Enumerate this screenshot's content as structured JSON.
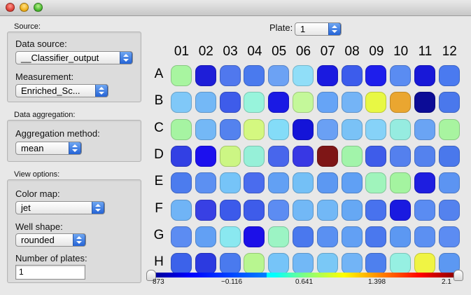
{
  "window": {
    "title": ""
  },
  "sidebar": {
    "source_heading": "Source:",
    "data_source_label": "Data source:",
    "data_source_value": "__Classifier_output",
    "measurement_label": "Measurement:",
    "measurement_value": "Enriched_Sc...",
    "aggregation_heading": "Data aggregation:",
    "aggregation_method_label": "Aggregation method:",
    "aggregation_method_value": "mean",
    "view_heading": "View options:",
    "color_map_label": "Color map:",
    "color_map_value": "jet",
    "well_shape_label": "Well shape:",
    "well_shape_value": "rounded",
    "num_plates_label": "Number of plates:",
    "num_plates_value": "1"
  },
  "plate": {
    "label": "Plate:",
    "value": "1"
  },
  "columns": [
    "01",
    "02",
    "03",
    "04",
    "05",
    "06",
    "07",
    "08",
    "09",
    "10",
    "11",
    "12"
  ],
  "rows": [
    "A",
    "B",
    "C",
    "D",
    "E",
    "F",
    "G",
    "H"
  ],
  "wells": [
    [
      "#a8f5a0",
      "#1e1ed8",
      "#5078ee",
      "#4a7aee",
      "#6ca2f4",
      "#90def8",
      "#1a1ae0",
      "#3c5cec",
      "#1e1eec",
      "#5a8cf2",
      "#1818d8",
      "#4a7af0"
    ],
    [
      "#80c8f8",
      "#74b8f6",
      "#3e5cea",
      "#98f4dc",
      "#1a1ae4",
      "#c4f89a",
      "#66a4f6",
      "#74b4f6",
      "#e8f844",
      "#eaa630",
      "#0c0c96",
      "#4a78ec"
    ],
    [
      "#a6f4a2",
      "#74b8f6",
      "#5482ee",
      "#d4f880",
      "#84dcf8",
      "#1414d8",
      "#6aa0f4",
      "#7ac2f6",
      "#86d2f8",
      "#96ece0",
      "#6aa4f4",
      "#a8f4a0"
    ],
    [
      "#3240e4",
      "#1c10ee",
      "#ccf684",
      "#96f0d8",
      "#4866ec",
      "#3838e4",
      "#7e1616",
      "#a2f4aa",
      "#3e5cea",
      "#5480ee",
      "#5482ee",
      "#4a78ec"
    ],
    [
      "#4c7cee",
      "#5c90f2",
      "#76c4f8",
      "#4a6cee",
      "#62a0f4",
      "#74c0f6",
      "#5c98f2",
      "#60a0f4",
      "#a0f4bc",
      "#a4f4a0",
      "#1e1ee0",
      "#5c94f2"
    ],
    [
      "#70b4f6",
      "#3840e4",
      "#3c5aea",
      "#3e5cea",
      "#5c8cf2",
      "#72b8f6",
      "#72b8f6",
      "#66a8f4",
      "#4872ee",
      "#1a1ae0",
      "#5a8cf2",
      "#5482ee"
    ],
    [
      "#5c8cf2",
      "#62a0f4",
      "#8ae8f0",
      "#1c10e8",
      "#9cf4c4",
      "#4a78ee",
      "#5a90f2",
      "#62a0f4",
      "#4a78ee",
      "#5c98f2",
      "#5c90f2",
      "#5c8cf2"
    ],
    [
      "#3c62ea",
      "#2c3ae0",
      "#4a7aee",
      "#b8f690",
      "#76c4f8",
      "#72b8f6",
      "#7ac8f6",
      "#72b4f6",
      "#4e80ee",
      "#96f0e2",
      "#f0f444",
      "#5c98f2"
    ]
  ],
  "colorbar": {
    "ticks": [
      "873",
      "−0.116",
      "0.641",
      "1.398",
      "2.1"
    ]
  }
}
